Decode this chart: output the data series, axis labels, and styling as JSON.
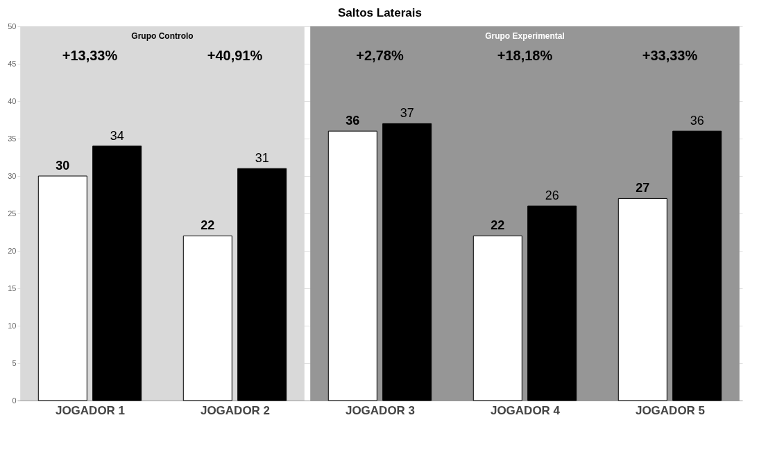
{
  "chart_data": {
    "type": "bar",
    "title": "Saltos Laterais",
    "categories": [
      "JOGADOR 1",
      "JOGADOR 2",
      "JOGADOR 3",
      "JOGADOR 4",
      "JOGADOR 5"
    ],
    "series": [
      {
        "color": "#ffffff",
        "values": [
          30,
          22,
          36,
          22,
          27
        ]
      },
      {
        "color": "#000000",
        "values": [
          34,
          31,
          37,
          26,
          36
        ]
      }
    ],
    "ylim": [
      0,
      50
    ],
    "yticks": [
      0,
      5,
      10,
      15,
      20,
      25,
      30,
      35,
      40,
      45,
      50
    ],
    "grid": "y",
    "data_labels": true,
    "bands": [
      {
        "axis": "x",
        "from": "JOGADOR 1",
        "to": "JOGADOR 2",
        "label": "Grupo Controlo",
        "color": "#d9d9d9"
      },
      {
        "axis": "x",
        "from": "JOGADOR 3",
        "to": "JOGADOR 5",
        "label": "Grupo Experimental",
        "color": "#969696"
      }
    ],
    "annotations": [
      "+13,33%",
      "+40,91%",
      "+2,78%",
      "+18,18%",
      "+33,33%"
    ]
  }
}
